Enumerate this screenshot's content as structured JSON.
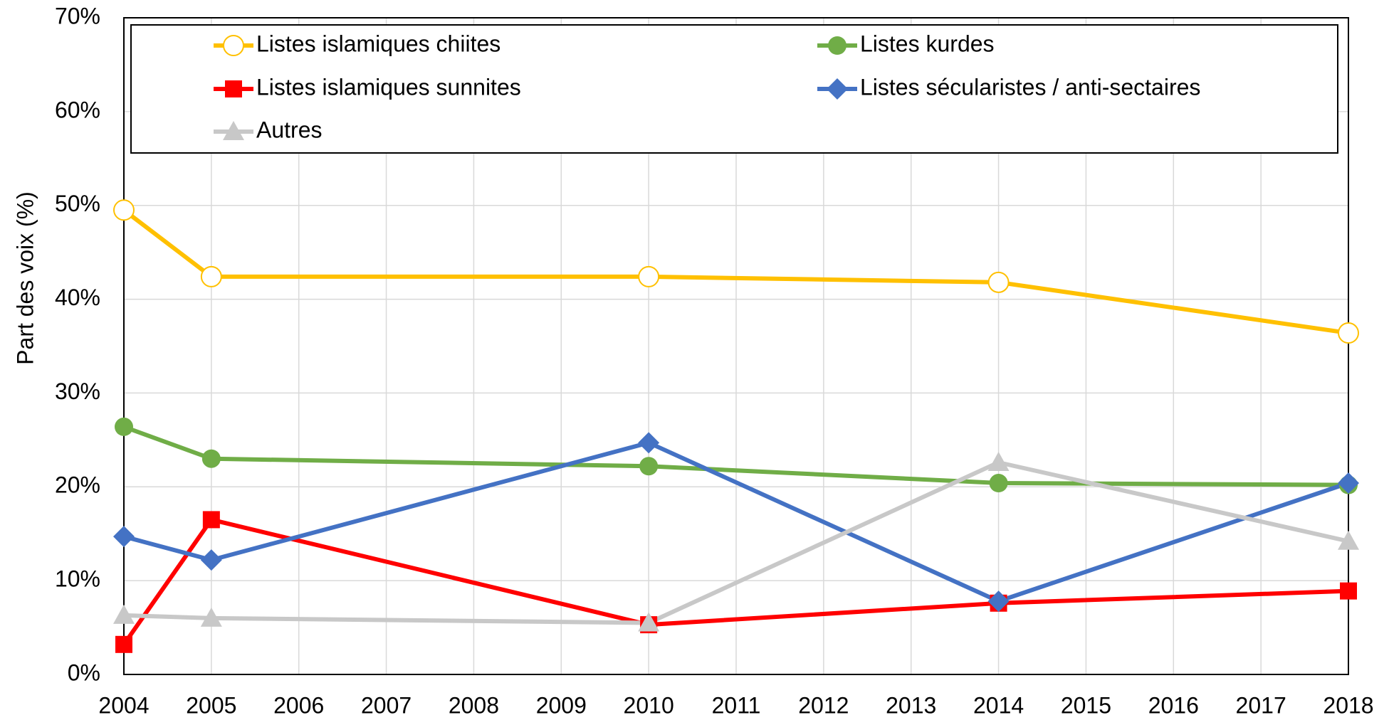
{
  "chart_data": {
    "type": "line",
    "y_label": "Part des voix (%)",
    "x": [
      2004,
      2005,
      2010,
      2014,
      2018
    ],
    "xlim": [
      2004,
      2018
    ],
    "xticks": [
      2004,
      2005,
      2006,
      2007,
      2008,
      2009,
      2010,
      2011,
      2012,
      2013,
      2014,
      2015,
      2016,
      2017,
      2018
    ],
    "ylim": [
      0,
      70
    ],
    "yticks": [
      {
        "value": 0,
        "label": "0%"
      },
      {
        "value": 10,
        "label": "10%"
      },
      {
        "value": 20,
        "label": "20%"
      },
      {
        "value": 30,
        "label": "30%"
      },
      {
        "value": 40,
        "label": "40%"
      },
      {
        "value": 50,
        "label": "50%"
      },
      {
        "value": 60,
        "label": "60%"
      },
      {
        "value": 70,
        "label": "70%"
      }
    ],
    "grid": true,
    "legend": "top",
    "series": [
      {
        "name": "Listes islamiques chiites",
        "color": "#FFC000",
        "marker": "open-circle",
        "values": [
          49.5,
          42.4,
          42.4,
          41.8,
          36.4
        ]
      },
      {
        "name": "Listes kurdes",
        "color": "#70AD47",
        "marker": "circle",
        "values": [
          26.4,
          23.0,
          22.2,
          20.4,
          20.2
        ]
      },
      {
        "name": "Listes islamiques sunnites",
        "color": "#FF0000",
        "marker": "square",
        "values": [
          3.2,
          16.5,
          5.3,
          7.6,
          8.9
        ]
      },
      {
        "name": "Listes sécularistes / anti-sectaires",
        "color": "#4472C4",
        "marker": "diamond",
        "values": [
          14.7,
          12.2,
          24.7,
          7.8,
          20.4
        ]
      },
      {
        "name": "Autres",
        "color": "#C8C8C8",
        "marker": "triangle",
        "values": [
          6.3,
          6.0,
          5.5,
          22.6,
          14.2
        ]
      }
    ]
  }
}
